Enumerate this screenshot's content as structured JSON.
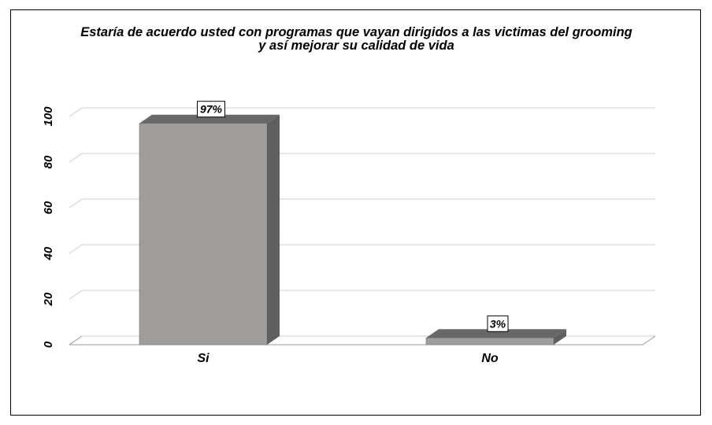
{
  "chart_data": {
    "type": "bar",
    "title_lines": [
      "Estaría de acuerdo usted con programas que vayan dirigidos a las victimas del grooming",
      "y así mejorar su calidad de vida"
    ],
    "categories": [
      "Si",
      "No"
    ],
    "values": [
      97,
      3
    ],
    "data_labels": [
      "97%",
      "3%"
    ],
    "y_ticks": [
      "0",
      "20",
      "40",
      "60",
      "80",
      "100"
    ],
    "ylim": [
      0,
      100
    ],
    "xlabel": "",
    "ylabel": "",
    "grid": true,
    "legend": "none",
    "colors": {
      "bar_front": "#a09e9d",
      "bar_side": "#5f5f5f",
      "bar_top": "#686868",
      "grid": "#cfcfcf",
      "axis": "#9a9a9a"
    }
  }
}
